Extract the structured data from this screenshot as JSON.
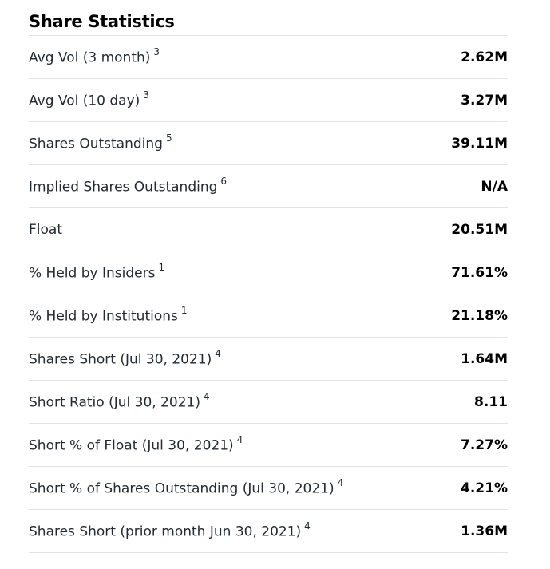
{
  "section": {
    "title": "Share Statistics",
    "rows": [
      {
        "label": "Avg Vol (3 month)",
        "note": "3",
        "value": "2.62M"
      },
      {
        "label": "Avg Vol (10 day)",
        "note": "3",
        "value": "3.27M"
      },
      {
        "label": "Shares Outstanding",
        "note": "5",
        "value": "39.11M"
      },
      {
        "label": "Implied Shares Outstanding",
        "note": "6",
        "value": "N/A"
      },
      {
        "label": "Float",
        "note": "",
        "value": "20.51M"
      },
      {
        "label": "% Held by Insiders",
        "note": "1",
        "value": "71.61%"
      },
      {
        "label": "% Held by Institutions",
        "note": "1",
        "value": "21.18%"
      },
      {
        "label": "Shares Short (Jul 30, 2021)",
        "note": "4",
        "value": "1.64M"
      },
      {
        "label": "Short Ratio (Jul 30, 2021)",
        "note": "4",
        "value": "8.11"
      },
      {
        "label": "Short % of Float (Jul 30, 2021)",
        "note": "4",
        "value": "7.27%"
      },
      {
        "label": "Short % of Shares Outstanding (Jul 30, 2021)",
        "note": "4",
        "value": "4.21%"
      },
      {
        "label": "Shares Short (prior month Jun 30, 2021)",
        "note": "4",
        "value": "1.36M"
      }
    ]
  }
}
